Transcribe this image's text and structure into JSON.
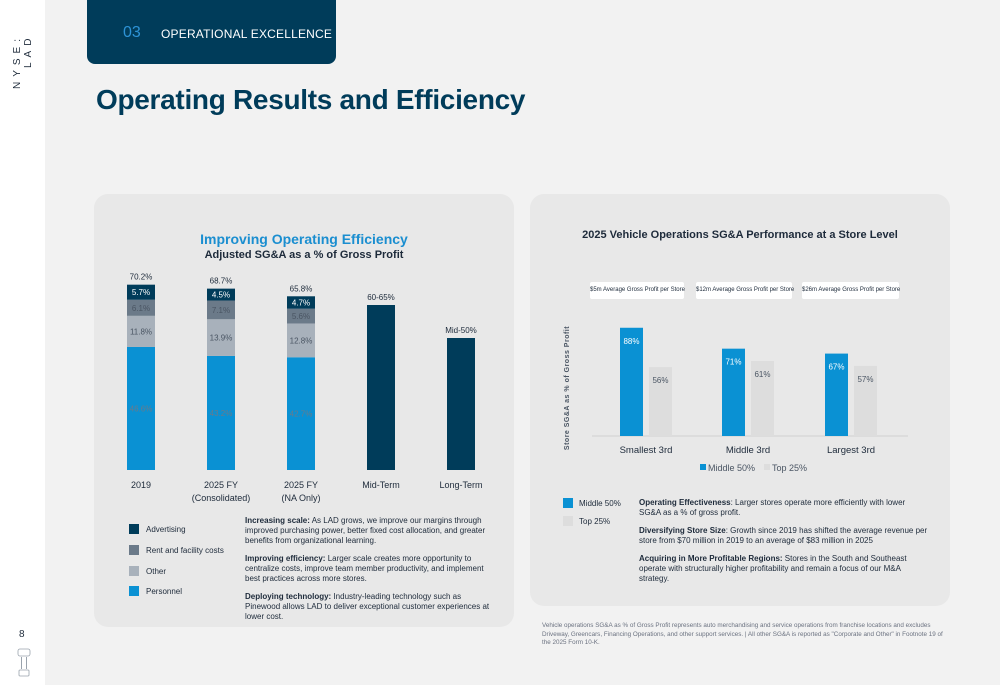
{
  "sidebar": {
    "ticker": "NYSE: LAD",
    "page_number": "8"
  },
  "section_tab": {
    "number": "03",
    "label": "OPERATIONAL EXCELLENCE"
  },
  "page_title": "Operating Results and Efficiency",
  "colors": {
    "advertising": "#003c5a",
    "rent": "#6b7a89",
    "other": "#a8b1bb",
    "personnel": "#0a91d3",
    "top25": "#dddddd",
    "title_blue": "#1a8ed0"
  },
  "left_chart": {
    "title": "Improving Operating Efficiency",
    "subtitle": "Adjusted SG&A as a % of Gross Profit",
    "legend": [
      {
        "name": "Advertising",
        "color": "#003c5a"
      },
      {
        "name": "Rent and facility costs",
        "color": "#6b7a89"
      },
      {
        "name": "Other",
        "color": "#a8b1bb"
      },
      {
        "name": "Personnel",
        "color": "#0a91d3"
      }
    ],
    "notes": [
      {
        "head": "Increasing scale:",
        "body": " As LAD grows, we improve our margins through improved purchasing power, better fixed cost allocation, and greater benefits from organizational learning."
      },
      {
        "head": "Improving efficiency:",
        "body": " Larger scale creates more opportunity to centralize costs, improve team member productivity, and implement best practices across more stores."
      },
      {
        "head": "Deploying technology:",
        "body": " Industry-leading technology such as Pinewood allows LAD to deliver exceptional customer experiences at lower cost."
      }
    ]
  },
  "right_chart": {
    "title": "2025 Vehicle Operations SG&A Performance at a Store Level",
    "pills": [
      "$5m Average Gross Profit per Store",
      "$12m Average Gross Profit per Store",
      "$26m Average Gross Profit per Store"
    ],
    "legend": [
      {
        "name": "Middle 50%",
        "color": "#0a91d3"
      },
      {
        "name": "Top 25%",
        "color": "#dddddd"
      }
    ],
    "notes": [
      {
        "head": "Operating Effectiveness",
        "body": ": Larger stores operate more efficiently with lower SG&A as a % of gross profit."
      },
      {
        "head": "Diversifying Store Size",
        "body": ": Growth since 2019 has shifted the average revenue per store from $70 million in 2019 to an average of $83 million in 2025"
      },
      {
        "head": "Acquiring in More Profitable Regions:",
        "body": " Stores in the South and Southeast operate with structurally higher profitability and remain a focus of our M&A strategy."
      }
    ]
  },
  "footnote": "Vehicle operations SG&A as % of Gross Profit represents auto merchandising and service operations from franchise locations and excludes Driveway, Greencars, Financing Operations, and other support services. | All other SG&A is reported as \"Corporate and Other\" in Footnote 19 of the 2025 Form 10-K.",
  "chart_data": [
    {
      "type": "bar",
      "stacked": true,
      "title": "Improving Operating Efficiency",
      "subtitle": "Adjusted SG&A as a % of Gross Profit",
      "categories": [
        "2019",
        "2025 FY\n(Consolidated)",
        "2025 FY\n(NA Only)",
        "Mid-Term",
        "Long-Term"
      ],
      "series": [
        {
          "name": "Personnel",
          "values": [
            46.6,
            43.2,
            42.7,
            null,
            null
          ],
          "labels": [
            "46.6%",
            "43.2%",
            "42.7%",
            "",
            ""
          ]
        },
        {
          "name": "Other",
          "values": [
            11.8,
            13.9,
            12.8,
            null,
            null
          ],
          "labels": [
            "11.8%",
            "13.9%",
            "12.8%",
            "",
            ""
          ]
        },
        {
          "name": "Rent and facility costs",
          "values": [
            6.1,
            7.1,
            5.6,
            null,
            null
          ],
          "labels": [
            "6.1%",
            "7.1%",
            "5.6%",
            "",
            ""
          ]
        },
        {
          "name": "Advertising",
          "values": [
            5.7,
            4.5,
            4.7,
            null,
            null
          ],
          "labels": [
            "5.7%",
            "4.5%",
            "4.7%",
            "",
            ""
          ]
        }
      ],
      "targets": [
        {
          "category": "Mid-Term",
          "value": 62.5,
          "label": "60-65%"
        },
        {
          "category": "Long-Term",
          "value": 50,
          "label": "Mid-50%"
        }
      ],
      "totals": [
        "70.2%",
        "68.7%",
        "65.8%",
        "60-65%",
        "Mid-50%"
      ],
      "ylim": [
        0,
        75
      ]
    },
    {
      "type": "bar",
      "title": "2025 Vehicle Operations SG&A Performance at a Store Level",
      "ylabel": "Store SG&A as % of Gross Profit",
      "categories": [
        "Smallest 3rd",
        "Middle 3rd",
        "Largest 3rd"
      ],
      "series": [
        {
          "name": "Middle 50%",
          "values": [
            88,
            71,
            67
          ],
          "labels": [
            "88%",
            "71%",
            "67%"
          ]
        },
        {
          "name": "Top 25%",
          "values": [
            56,
            61,
            57
          ],
          "labels": [
            "56%",
            "61%",
            "57%"
          ]
        }
      ],
      "ylim": [
        0,
        100
      ]
    }
  ]
}
